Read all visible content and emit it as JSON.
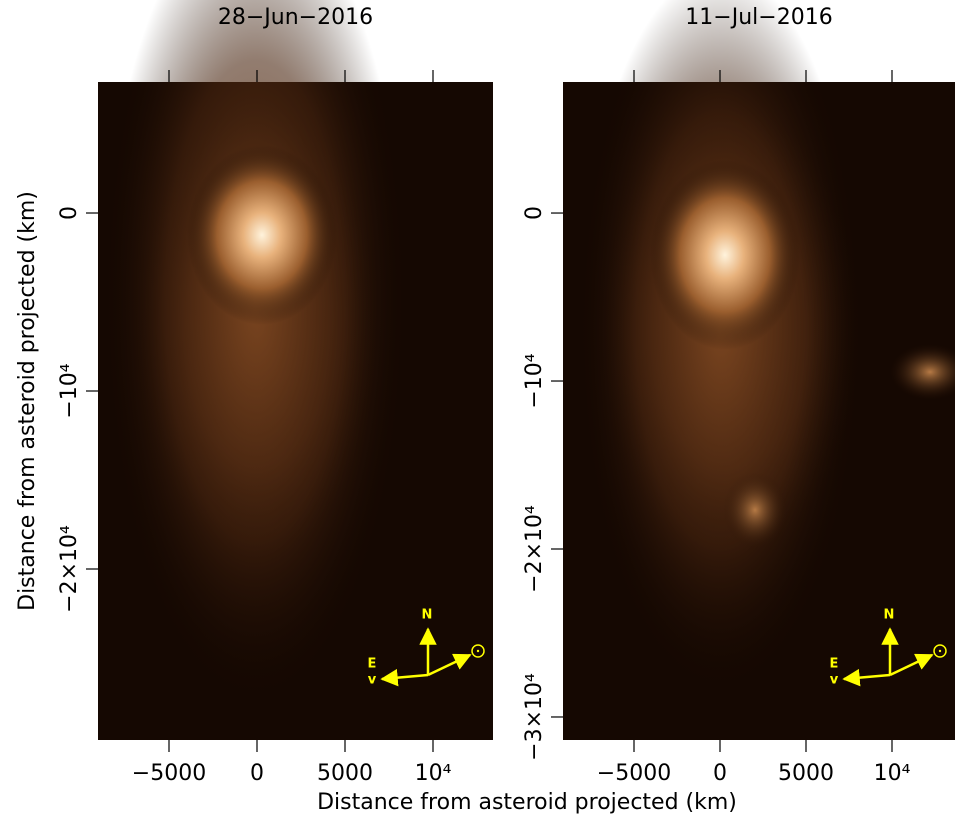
{
  "chart_data": [
    {
      "type": "image",
      "title": "28−Jun−2016",
      "ylabel": "Distance from asteroid projected (km)",
      "xlim": [
        -9034,
        13409
      ],
      "ylim": [
        -29607,
        7360
      ],
      "xticks": [
        {
          "value": -5000,
          "label": "−5000"
        },
        0,
        5000,
        {
          "value": 10000,
          "label": "10⁴"
        }
      ],
      "yticks": [
        0,
        {
          "value": -10000,
          "label": "−10⁴"
        },
        {
          "value": -20000,
          "label": "−2×10⁴"
        }
      ],
      "annotations": [
        "N",
        "E"
      ]
    },
    {
      "type": "image",
      "title": "11−Jul−2016",
      "xlim": [
        -9128,
        13663
      ],
      "ylim": [
        -31370,
        7800
      ],
      "xticks": [
        {
          "value": -5000,
          "label": "−5000"
        },
        0,
        5000,
        {
          "value": 10000,
          "label": "10⁴"
        }
      ],
      "yticks": [
        0,
        {
          "value": -10000,
          "label": "−10⁴"
        },
        {
          "value": -20000,
          "label": "−2×10⁴"
        },
        {
          "value": -30000,
          "label": "−3×10⁴"
        }
      ],
      "annotations": [
        "N",
        "E"
      ]
    }
  ],
  "xlabel": "Distance from asteroid projected (km)"
}
